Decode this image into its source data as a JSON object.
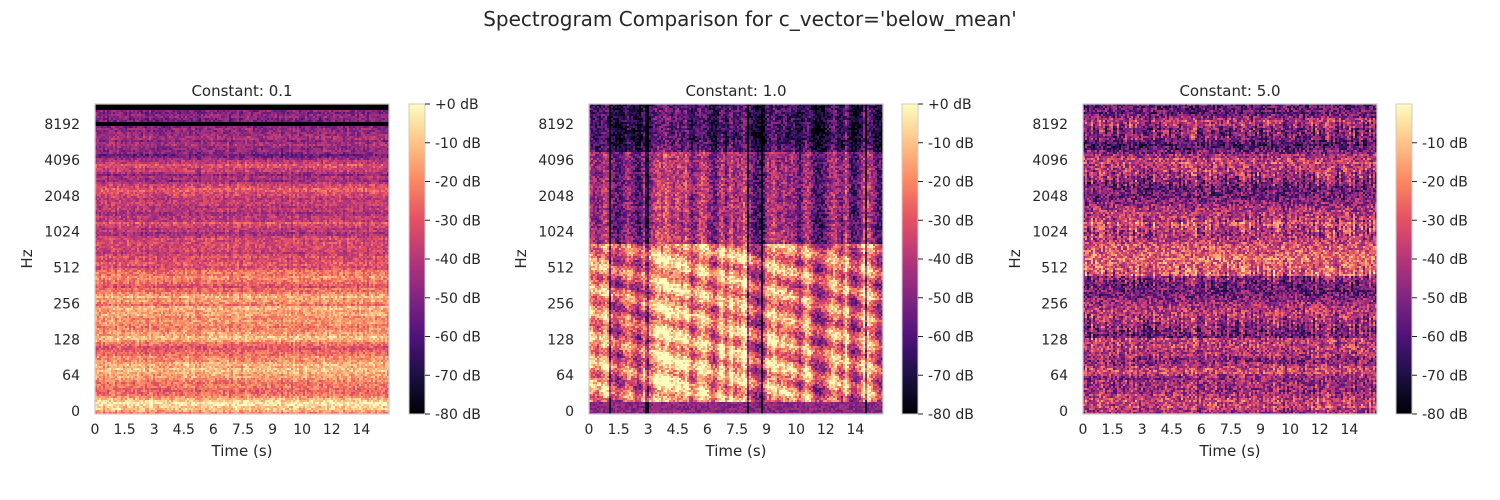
{
  "figure": {
    "suptitle": "Spectrogram Comparison for c_vector='below_mean'"
  },
  "colormap": {
    "name": "magma",
    "stops": [
      "#000004",
      "#1c1044",
      "#4f127b",
      "#812581",
      "#b5367a",
      "#e55064",
      "#fb8761",
      "#fec287",
      "#fcfdbf"
    ]
  },
  "chart_data": [
    {
      "type": "heatmap",
      "title": "Constant: 0.1",
      "xlabel": "Time (s)",
      "ylabel": "Hz",
      "x_ticks": [
        "0",
        "1.5",
        "3",
        "4.5",
        "6",
        "7.5",
        "9",
        "10",
        "12",
        "14"
      ],
      "x_tick_values": [
        0,
        1.5,
        3,
        4.5,
        6,
        7.5,
        9,
        10.5,
        12,
        13.5
      ],
      "xlim": [
        0,
        14.9
      ],
      "y_scale": "log2",
      "y_ticks": [
        "0",
        "64",
        "128",
        "256",
        "512",
        "1024",
        "2048",
        "4096",
        "8192"
      ],
      "colorbar": {
        "label_ticks": [
          "+0 dB",
          "-10 dB",
          "-20 dB",
          "-30 dB",
          "-40 dB",
          "-50 dB",
          "-60 dB",
          "-70 dB",
          "-80 dB"
        ],
        "range_db": [
          -80,
          0
        ]
      },
      "pattern": "horizontal-bands",
      "seed": 11
    },
    {
      "type": "heatmap",
      "title": "Constant: 1.0",
      "xlabel": "Time (s)",
      "ylabel": "Hz",
      "x_ticks": [
        "0",
        "1.5",
        "3",
        "4.5",
        "6",
        "7.5",
        "9",
        "10",
        "12",
        "14"
      ],
      "x_tick_values": [
        0,
        1.5,
        3,
        4.5,
        6,
        7.5,
        9,
        10.5,
        12,
        13.5
      ],
      "xlim": [
        0,
        14.9
      ],
      "y_scale": "log2",
      "y_ticks": [
        "0",
        "64",
        "128",
        "256",
        "512",
        "1024",
        "2048",
        "4096",
        "8192"
      ],
      "colorbar": {
        "label_ticks": [
          "+0 dB",
          "-10 dB",
          "-20 dB",
          "-30 dB",
          "-40 dB",
          "-50 dB",
          "-60 dB",
          "-70 dB",
          "-80 dB"
        ],
        "range_db": [
          -80,
          0
        ]
      },
      "pattern": "speech-harmonics",
      "seed": 23
    },
    {
      "type": "heatmap",
      "title": "Constant: 5.0",
      "xlabel": "Time (s)",
      "ylabel": "Hz",
      "x_ticks": [
        "0",
        "1.5",
        "3",
        "4.5",
        "6",
        "7.5",
        "9",
        "10",
        "12",
        "14"
      ],
      "x_tick_values": [
        0,
        1.5,
        3,
        4.5,
        6,
        7.5,
        9,
        10.5,
        12,
        13.5
      ],
      "xlim": [
        0,
        14.9
      ],
      "y_scale": "log2",
      "y_ticks": [
        "0",
        "64",
        "128",
        "256",
        "512",
        "1024",
        "2048",
        "4096",
        "8192"
      ],
      "colorbar": {
        "label_ticks": [
          "-10 dB",
          "-20 dB",
          "-30 dB",
          "-40 dB",
          "-50 dB",
          "-60 dB",
          "-70 dB",
          "-80 dB"
        ],
        "range_db": [
          -80,
          0
        ]
      },
      "pattern": "high-noise",
      "seed": 37
    }
  ]
}
